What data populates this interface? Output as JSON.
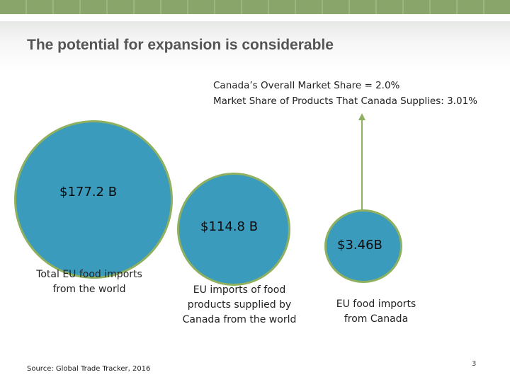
{
  "title": "The potential for expansion is considerable",
  "stats": {
    "overall_share": "Canada’s Overall Market Share = 2.0%",
    "products_share": "Market Share of Products That Canada Supplies: 3.01%"
  },
  "bubbles": [
    {
      "value": "$177.2 B",
      "label_lines": [
        "Total EU food imports",
        "from the world"
      ]
    },
    {
      "value": "$114.8 B",
      "label_lines": [
        "EU imports of food",
        "products supplied by",
        "Canada from the world"
      ]
    },
    {
      "value": "$3.46B",
      "label_lines": [
        "EU food imports",
        "from Canada"
      ]
    }
  ],
  "source": "Source: Global Trade Tracker, 2016",
  "page_number": "3",
  "colors": {
    "bubble_fill": "#3a9bbd",
    "bubble_border": "#8fb15f",
    "header_band": "#8aa56a"
  }
}
